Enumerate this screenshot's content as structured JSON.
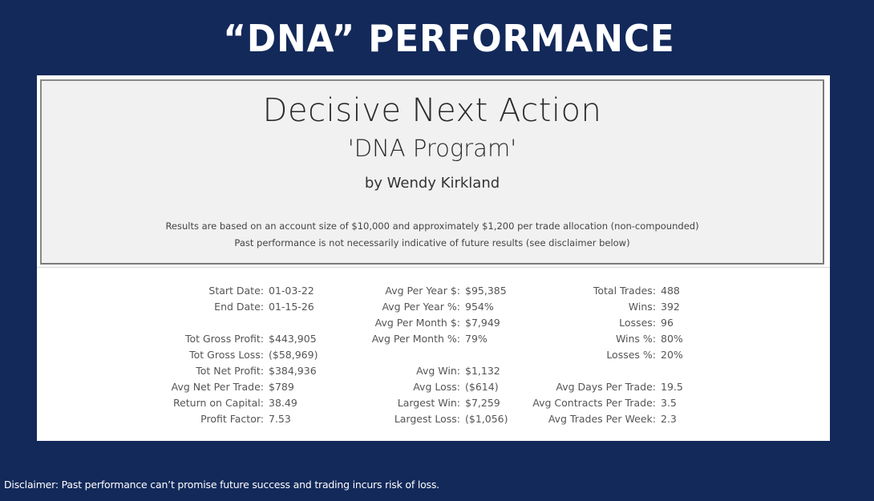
{
  "slide": {
    "title": "“DNA” PERFORMANCE",
    "background_color": "#12295a",
    "disclaimer": "Disclaimer: Past performance can’t promise future success and trading incurs risk of loss."
  },
  "header": {
    "program_name": "Decisive Next Action",
    "program_subtitle": "'DNA Program'",
    "author": "by Wendy Kirkland",
    "note_1": "Results are based on an account size of $10,000 and approximately $1,200 per trade allocation (non-compounded)",
    "note_2": "Past performance is not necessarily indicative of future results (see disclaimer below)"
  },
  "stats": {
    "col1": [
      {
        "label": "Start Date:",
        "value": "01-03-22"
      },
      {
        "label": "End Date:",
        "value": "01-15-26"
      },
      {
        "label": "",
        "value": ""
      },
      {
        "label": "Tot Gross Profit:",
        "value": "$443,905"
      },
      {
        "label": "Tot Gross Loss:",
        "value": "($58,969)"
      },
      {
        "label": "Tot Net Profit:",
        "value": "$384,936"
      },
      {
        "label": "Avg Net Per Trade:",
        "value": "$789"
      },
      {
        "label": "Return on Capital:",
        "value": "38.49"
      },
      {
        "label": "Profit Factor:",
        "value": "7.53"
      }
    ],
    "col2": [
      {
        "label": "Avg Per Year $:",
        "value": "$95,385"
      },
      {
        "label": "Avg Per Year %:",
        "value": "954%"
      },
      {
        "label": "Avg Per Month $:",
        "value": "$7,949"
      },
      {
        "label": "Avg Per Month %:",
        "value": "79%"
      },
      {
        "label": "",
        "value": ""
      },
      {
        "label": "Avg Win:",
        "value": "$1,132"
      },
      {
        "label": "Avg Loss:",
        "value": "($614)"
      },
      {
        "label": "Largest Win:",
        "value": "$7,259"
      },
      {
        "label": "Largest Loss:",
        "value": "($1,056)"
      }
    ],
    "col3": [
      {
        "label": "Total Trades:",
        "value": "488"
      },
      {
        "label": "Wins:",
        "value": "392"
      },
      {
        "label": "Losses:",
        "value": "96"
      },
      {
        "label": "Wins %:",
        "value": "80%"
      },
      {
        "label": "Losses %:",
        "value": "20%"
      },
      {
        "label": "",
        "value": ""
      },
      {
        "label": "Avg Days Per Trade:",
        "value": "19.5"
      },
      {
        "label": "Avg Contracts Per Trade:",
        "value": "3.5"
      },
      {
        "label": "Avg Trades Per Week:",
        "value": "2.3"
      }
    ]
  }
}
